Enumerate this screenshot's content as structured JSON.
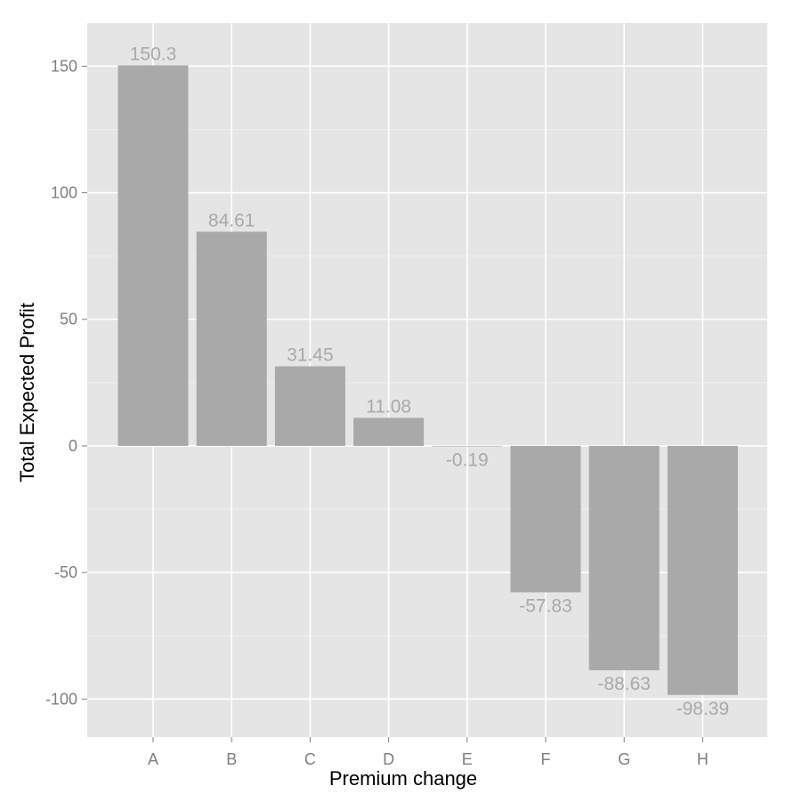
{
  "chart_data": {
    "type": "bar",
    "title": "",
    "xlabel": "Premium change",
    "ylabel": "Total Expected Profit",
    "categories": [
      "A",
      "B",
      "C",
      "D",
      "E",
      "F",
      "G",
      "H"
    ],
    "values": [
      150.3,
      84.61,
      31.45,
      11.08,
      -0.19,
      -57.83,
      -88.63,
      -98.39
    ],
    "value_labels": [
      "150.3",
      "84.61",
      "31.45",
      "11.08",
      "-0.19",
      "-57.83",
      "-88.63",
      "-98.39"
    ],
    "ylim": [
      -115,
      167
    ],
    "yticks": [
      -100,
      -50,
      0,
      50,
      100,
      150
    ],
    "ytick_labels": [
      "-100",
      "-50",
      "0",
      "50",
      "100",
      "150"
    ],
    "grid": true,
    "legend": "none",
    "colors": {
      "panel": "#e5e5e5",
      "bar": "#a9a9a9",
      "grid": "#ffffff",
      "label": "#a9a9a9"
    }
  }
}
